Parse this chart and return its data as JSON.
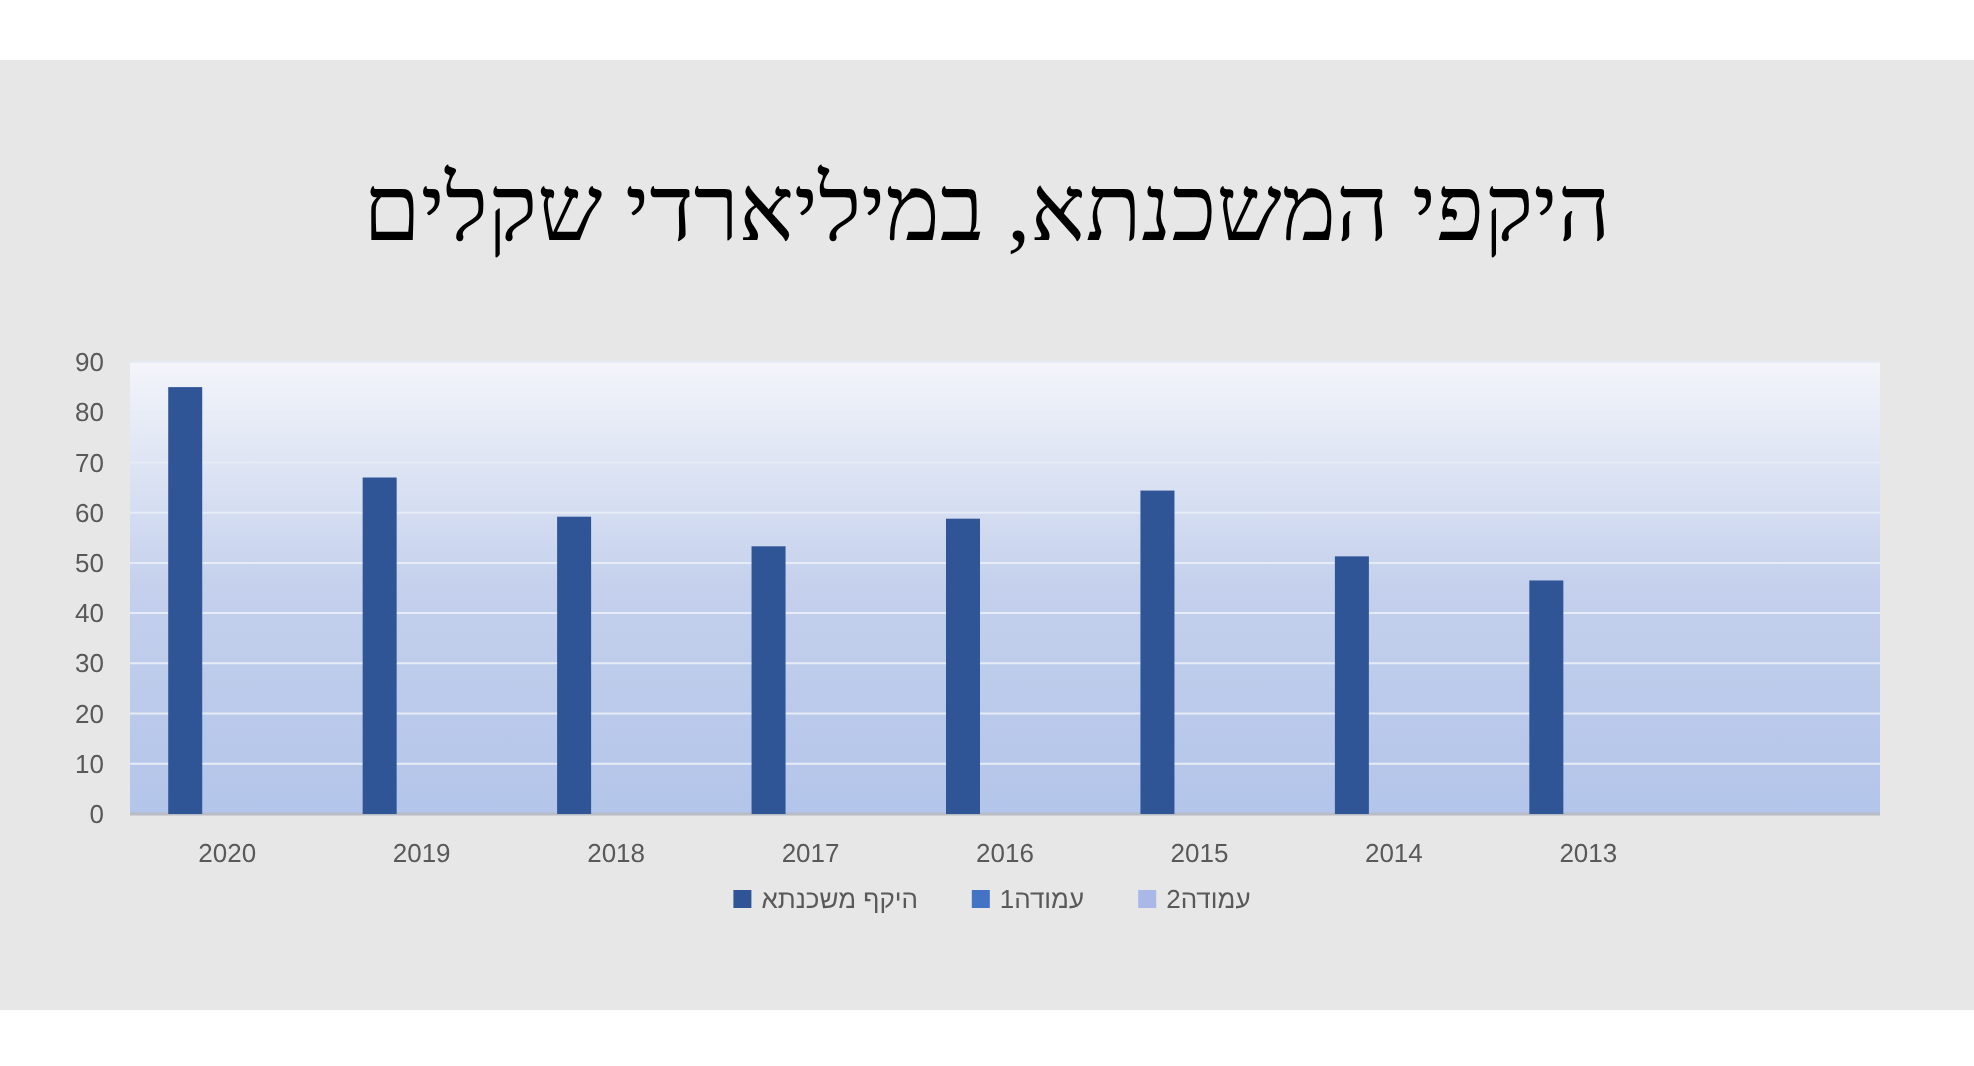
{
  "chart_data": {
    "type": "bar",
    "title": "היקפי המשכנתא, במיליארדי שקלים",
    "categories": [
      "2020",
      "2019",
      "2018",
      "2017",
      "2016",
      "2015",
      "2014",
      "2013",
      null
    ],
    "series": [
      {
        "name": "היקף משכנתא",
        "color": "#2f5597",
        "values": [
          85,
          67,
          59.2,
          53.3,
          58.8,
          64.4,
          51.3,
          46.5,
          null
        ]
      },
      {
        "name": "עמודה1",
        "color": "#4472c4",
        "values": [
          null,
          null,
          null,
          null,
          null,
          null,
          null,
          null,
          null
        ]
      },
      {
        "name": "עמודה2",
        "color": "#a9b8e6",
        "values": [
          null,
          null,
          null,
          null,
          null,
          null,
          null,
          null,
          null
        ]
      }
    ],
    "ylim": [
      0,
      90
    ],
    "yticks": [
      0,
      10,
      20,
      30,
      40,
      50,
      60,
      70,
      80,
      90
    ],
    "grid": "y",
    "legend": "bottom"
  }
}
